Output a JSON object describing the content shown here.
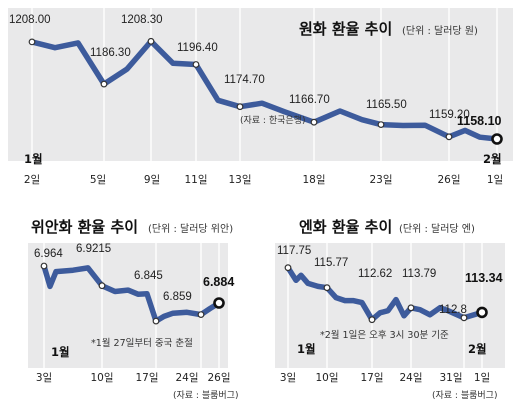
{
  "chart_data": [
    {
      "type": "line",
      "title": "원화 환율 추이",
      "subtitle": "(단위 : 달러당 원)",
      "source": "(자료 : 한국은행)",
      "xlabel": "",
      "ylabel": "",
      "x": [
        "2일",
        "3일",
        "4일",
        "5일",
        "8일",
        "9일",
        "10일",
        "11일",
        "12일",
        "13일",
        "16일",
        "17일",
        "18일",
        "19일",
        "22일",
        "23일",
        "24일",
        "25일",
        "26일",
        "29일",
        "30일",
        "1일"
      ],
      "series": [
        {
          "values": [
            1208.0,
            1205.0,
            1207.5,
            1186.3,
            1194.0,
            1208.3,
            1197.0,
            1196.4,
            1178.0,
            1174.7,
            1176.5,
            1172.0,
            1166.7,
            1172.5,
            1168.0,
            1165.5,
            1165.0,
            1165.2,
            1159.2,
            1162.5,
            1159.0,
            1158.1
          ]
        }
      ],
      "value_labels": [
        "1208.00",
        "1186.30",
        "1208.30",
        "1196.40",
        "1174.70",
        "1166.70",
        "1165.50",
        "1159.20",
        "1158.10"
      ],
      "ticks": [
        {
          "text": "2일",
          "i": 0
        },
        {
          "text": "5일",
          "i": 3
        },
        {
          "text": "9일",
          "i": 5
        },
        {
          "text": "11일",
          "i": 7
        },
        {
          "text": "13일",
          "i": 9
        },
        {
          "text": "18일",
          "i": 12
        },
        {
          "text": "23일",
          "i": 15
        },
        {
          "text": "26일",
          "i": 18
        },
        {
          "text": "1일",
          "i": 21
        }
      ],
      "months": [
        "1월",
        "2월"
      ],
      "grid": false
    },
    {
      "type": "line",
      "title": "위안화 환율 추이",
      "subtitle": "(단위 : 달러당 위안)",
      "source": "(자료 : 블룸버그)",
      "note": "*1월 27일부터 중국 춘절",
      "xlabel": "",
      "ylabel": "",
      "x": [
        "3일",
        "4일",
        "5일",
        "6일",
        "7일",
        "10일",
        "11일",
        "12일",
        "13일",
        "14일",
        "17일",
        "18일",
        "19일",
        "20일",
        "24일",
        "25일",
        "26일"
      ],
      "series": [
        {
          "values": [
            6.964,
            6.92,
            6.952,
            6.955,
            6.96,
            6.9215,
            6.909,
            6.912,
            6.903,
            6.904,
            6.845,
            6.855,
            6.862,
            6.864,
            6.859,
            6.872,
            6.884
          ]
        }
      ],
      "value_labels": [
        "6.964",
        "6.9215",
        "6.845",
        "6.859",
        "6.884"
      ],
      "ticks": [
        {
          "text": "3일",
          "i": 0
        },
        {
          "text": "10일",
          "i": 5
        },
        {
          "text": "17일",
          "i": 10
        },
        {
          "text": "24일",
          "i": 14
        },
        {
          "text": "26일",
          "i": 16
        }
      ],
      "months": [
        "1월"
      ],
      "grid": false
    },
    {
      "type": "line",
      "title": "엔화 환율 추이",
      "subtitle": "(단위 : 달러당 엔)",
      "source": "(자료 : 블룸버그)",
      "note": "*2월 1일은 오후 3시 30분 기준",
      "xlabel": "",
      "ylabel": "",
      "x": [
        "3일",
        "4일",
        "5일",
        "6일",
        "9일",
        "10일",
        "11일",
        "12일",
        "13일",
        "16일",
        "17일",
        "18일",
        "19일",
        "20일",
        "23일",
        "24일",
        "25일",
        "26일",
        "27일",
        "30일",
        "31일",
        "1일"
      ],
      "series": [
        {
          "values": [
            117.75,
            116.5,
            117.0,
            116.2,
            115.9,
            115.77,
            114.8,
            114.5,
            114.5,
            114.3,
            112.62,
            113.3,
            113.5,
            114.6,
            113.0,
            113.79,
            113.6,
            113.1,
            113.8,
            113.5,
            112.8,
            113.34
          ]
        }
      ],
      "value_labels": [
        "117.75",
        "115.77",
        "112.62",
        "113.79",
        "112.8",
        "113.34"
      ],
      "ticks": [
        {
          "text": "3일",
          "i": 0
        },
        {
          "text": "10일",
          "i": 5
        },
        {
          "text": "17일",
          "i": 10
        },
        {
          "text": "24일",
          "i": 15
        },
        {
          "text": "31일",
          "i": 20
        },
        {
          "text": "1일",
          "i": 21
        }
      ],
      "months": [
        "1월",
        "2월"
      ],
      "grid": false
    }
  ],
  "colors": {
    "line": "#3d5b9c",
    "panel": "#e9e9ea"
  }
}
